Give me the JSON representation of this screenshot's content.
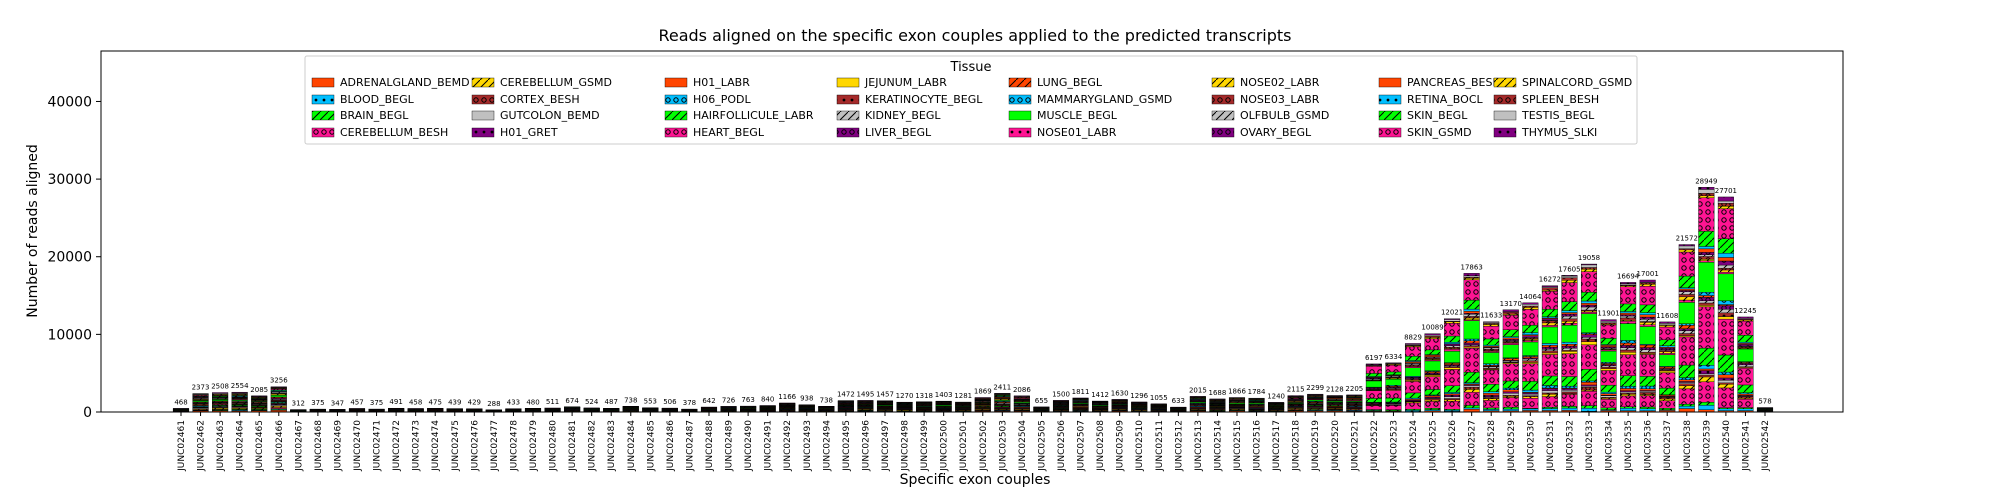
{
  "chart_data": {
    "type": "bar",
    "stacked": true,
    "title": "Reads aligned on the specific exon couples applied to the predicted transcripts",
    "xlabel": "Specific exon couples",
    "ylabel": "Number of reads aligned",
    "ylim": [
      0,
      46500
    ],
    "yticks": [
      "0",
      "10000",
      "20000",
      "30000",
      "40000"
    ],
    "legend_title": "Tissue",
    "legend_position": "top-center",
    "grid": false,
    "categories": [
      "JUNC02461",
      "JUNC02462",
      "JUNC02463",
      "JUNC02464",
      "JUNC02465",
      "JUNC02466",
      "JUNC02467",
      "JUNC02468",
      "JUNC02469",
      "JUNC02470",
      "JUNC02471",
      "JUNC02472",
      "JUNC02473",
      "JUNC02474",
      "JUNC02475",
      "JUNC02476",
      "JUNC02477",
      "JUNC02478",
      "JUNC02479",
      "JUNC02480",
      "JUNC02481",
      "JUNC02482",
      "JUNC02483",
      "JUNC02484",
      "JUNC02485",
      "JUNC02486",
      "JUNC02487",
      "JUNC02488",
      "JUNC02489",
      "JUNC02490",
      "JUNC02491",
      "JUNC02492",
      "JUNC02493",
      "JUNC02494",
      "JUNC02495",
      "JUNC02496",
      "JUNC02497",
      "JUNC02498",
      "JUNC02499",
      "JUNC02500",
      "JUNC02501",
      "JUNC02502",
      "JUNC02503",
      "JUNC02504",
      "JUNC02505",
      "JUNC02506",
      "JUNC02507",
      "JUNC02508",
      "JUNC02509",
      "JUNC02510",
      "JUNC02511",
      "JUNC02512",
      "JUNC02513",
      "JUNC02514",
      "JUNC02515",
      "JUNC02516",
      "JUNC02517",
      "JUNC02518",
      "JUNC02519",
      "JUNC02520",
      "JUNC02521",
      "JUNC02522",
      "JUNC02523",
      "JUNC02524",
      "JUNC02525",
      "JUNC02526",
      "JUNC02527",
      "JUNC02528",
      "JUNC02529",
      "JUNC02530",
      "JUNC02531",
      "JUNC02532",
      "JUNC02533",
      "JUNC02534",
      "JUNC02535",
      "JUNC02536",
      "JUNC02537",
      "JUNC02538",
      "JUNC02539",
      "JUNC02540",
      "JUNC02541",
      "JUNC02542"
    ],
    "totals": [
      468,
      2373,
      2508,
      2554,
      2085,
      3256,
      312,
      375,
      347,
      457,
      375,
      491,
      458,
      475,
      439,
      429,
      288,
      433,
      480,
      511,
      674,
      524,
      487,
      738,
      553,
      506,
      378,
      642,
      726,
      763,
      840,
      1166,
      938,
      738,
      1472,
      1495,
      1457,
      1270,
      1318,
      1403,
      1281,
      1869,
      2411,
      2086,
      655,
      1500,
      1811,
      1412,
      1630,
      1296,
      1055,
      633,
      2015,
      1688,
      1866,
      1784,
      1240,
      2115,
      2299,
      2128,
      2205,
      6197,
      6334,
      8829,
      10089,
      12021,
      17863,
      11633,
      13170,
      14064,
      16272,
      17605,
      19058,
      11901,
      16694,
      17001,
      11608,
      21572,
      28949,
      27701,
      12245,
      578
    ],
    "total_labels": [
      "468",
      "2373",
      "2508",
      "2554",
      "2085",
      "3256",
      "312",
      "375",
      "347",
      "457",
      "375",
      "491",
      "458",
      "475",
      "439",
      "429",
      "288",
      "433",
      "480",
      "511",
      "674",
      "524",
      "487",
      "738",
      "553",
      "506",
      "378",
      "642",
      "726",
      "763",
      "840",
      "1166",
      "938",
      "738",
      "1472",
      "1495",
      "1457",
      "1270",
      "1318",
      "1403",
      "1281",
      "1869",
      "2411",
      "2086",
      "655",
      "1500",
      "1811",
      "1412",
      "1630",
      "1296",
      "1055",
      "633",
      "2015",
      "1688",
      "1866",
      "1784",
      "1240",
      "2115",
      "2299",
      "2128",
      "2205",
      "6197",
      "6334",
      "8829",
      "10089",
      "12021",
      "17863",
      "11633",
      "13170",
      "14064",
      "16272",
      "17605",
      "19058",
      "11901",
      "16694",
      "17001",
      "11608",
      "21572",
      "28949",
      "27701",
      "12245",
      "578"
    ],
    "series": [
      {
        "name": "ADRENALGLAND_BEMD",
        "color": "#ff4500",
        "pattern": "none"
      },
      {
        "name": "BLOOD_BEGL",
        "color": "#00bfff",
        "pattern": "dot"
      },
      {
        "name": "BRAIN_BEGL",
        "color": "#00ff00",
        "pattern": "slash"
      },
      {
        "name": "CEREBELLUM_BESH",
        "color": "#ff1493",
        "pattern": "ring"
      },
      {
        "name": "CEREBELLUM_GSMD",
        "color": "#ffd700",
        "pattern": "slash"
      },
      {
        "name": "CORTEX_BESH",
        "color": "#a52a2a",
        "pattern": "ring"
      },
      {
        "name": "GUTCOLON_BEMD",
        "color": "#c0c0c0",
        "pattern": "none"
      },
      {
        "name": "H01_GRET",
        "color": "#800080",
        "pattern": "dot"
      },
      {
        "name": "H01_LABR",
        "color": "#ff4500",
        "pattern": "none"
      },
      {
        "name": "H06_PODL",
        "color": "#00bfff",
        "pattern": "ring"
      },
      {
        "name": "HAIRFOLLICULE_LABR",
        "color": "#00ff00",
        "pattern": "slash"
      },
      {
        "name": "HEART_BEGL",
        "color": "#ff1493",
        "pattern": "ring"
      },
      {
        "name": "JEJUNUM_LABR",
        "color": "#ffd700",
        "pattern": "none"
      },
      {
        "name": "KERATINOCYTE_BEGL",
        "color": "#a52a2a",
        "pattern": "dot"
      },
      {
        "name": "KIDNEY_BEGL",
        "color": "#c0c0c0",
        "pattern": "slash"
      },
      {
        "name": "LIVER_BEGL",
        "color": "#800080",
        "pattern": "ring"
      },
      {
        "name": "LUNG_BEGL",
        "color": "#ff4500",
        "pattern": "slash"
      },
      {
        "name": "MAMMARYGLAND_GSMD",
        "color": "#00bfff",
        "pattern": "ring"
      },
      {
        "name": "MUSCLE_BEGL",
        "color": "#00ff00",
        "pattern": "none"
      },
      {
        "name": "NOSE01_LABR",
        "color": "#ff1493",
        "pattern": "dot"
      },
      {
        "name": "NOSE02_LABR",
        "color": "#ffd700",
        "pattern": "slash"
      },
      {
        "name": "NOSE03_LABR",
        "color": "#a52a2a",
        "pattern": "ring"
      },
      {
        "name": "OLFBULB_GSMD",
        "color": "#c0c0c0",
        "pattern": "slash"
      },
      {
        "name": "OVARY_BEGL",
        "color": "#800080",
        "pattern": "ring"
      },
      {
        "name": "PANCREAS_BESH",
        "color": "#ff4500",
        "pattern": "none"
      },
      {
        "name": "RETINA_BOCL",
        "color": "#00bfff",
        "pattern": "dot"
      },
      {
        "name": "SKIN_BEGL",
        "color": "#00ff00",
        "pattern": "slash"
      },
      {
        "name": "SKIN_GSMD",
        "color": "#ff1493",
        "pattern": "ring"
      },
      {
        "name": "SPINALCORD_GSMD",
        "color": "#ffd700",
        "pattern": "slash"
      },
      {
        "name": "SPLEEN_BESH",
        "color": "#a52a2a",
        "pattern": "ring"
      },
      {
        "name": "TESTIS_BEGL",
        "color": "#c0c0c0",
        "pattern": "none"
      },
      {
        "name": "THYMUS_SLKI",
        "color": "#800080",
        "pattern": "dot"
      }
    ]
  }
}
